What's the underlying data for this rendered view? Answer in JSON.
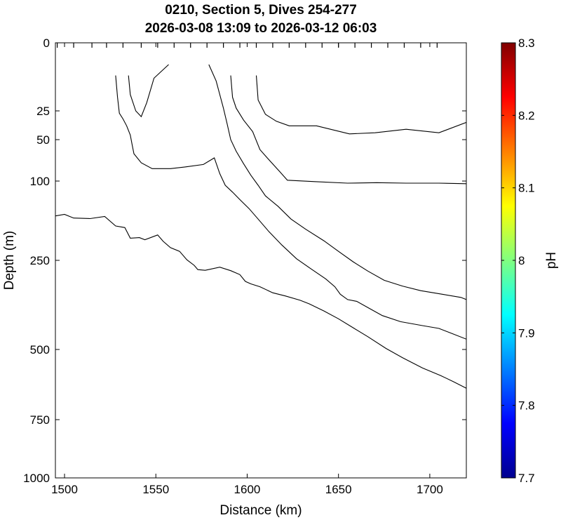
{
  "chart_data": {
    "type": "contour",
    "title": "0210, Section 5, Dives 254-277",
    "subtitle": "2026-03-08 13:09 to 2026-03-12 06:03",
    "xlabel": "Distance (km)",
    "ylabel": "Depth (m)",
    "xlim": [
      1495,
      1720
    ],
    "x_ticks": [
      1500,
      1550,
      1600,
      1650,
      1700
    ],
    "y_ticks": [
      0,
      25,
      50,
      100,
      250,
      500,
      750,
      1000
    ],
    "y_tick_labels": [
      "0",
      "25",
      "50",
      "100",
      "250",
      "500",
      "750",
      "1000"
    ],
    "dive_marks_x": [
      1496,
      1505,
      1515,
      1523,
      1532,
      1542,
      1551,
      1560,
      1569,
      1578,
      1587,
      1596,
      1605,
      1614,
      1623,
      1632,
      1641,
      1650,
      1659,
      1668,
      1677,
      1686,
      1695,
      1704
    ],
    "colorbar": {
      "label": "pH",
      "range": [
        7.7,
        8.3
      ],
      "ticks": [
        "8.3",
        "8.2",
        "8.1",
        "8",
        "7.9",
        "7.8",
        "7.7"
      ],
      "tick_values": [
        8.3,
        8.2,
        8.1,
        8.0,
        7.9,
        7.8,
        7.7
      ],
      "colormap": [
        "#00008f",
        "#0000ff",
        "#0080ff",
        "#00ffff",
        "#80ff80",
        "#ffff00",
        "#ff8000",
        "#ff0000",
        "#800000"
      ]
    },
    "contours": [
      [
        [
          1528,
          12
        ],
        [
          1529,
          20
        ],
        [
          1530,
          27
        ],
        [
          1532,
          32
        ],
        [
          1534,
          38
        ],
        [
          1536,
          46
        ],
        [
          1537,
          56
        ],
        [
          1538,
          67
        ],
        [
          1542,
          78
        ],
        [
          1548,
          85
        ],
        [
          1558,
          85
        ],
        [
          1566,
          83
        ],
        [
          1576,
          80
        ],
        [
          1582,
          72
        ],
        [
          1585,
          91
        ],
        [
          1588,
          108
        ],
        [
          1592,
          121
        ],
        [
          1596,
          135
        ],
        [
          1601,
          152
        ],
        [
          1606,
          172
        ],
        [
          1612,
          196
        ],
        [
          1619,
          221
        ],
        [
          1627,
          247
        ],
        [
          1635,
          274
        ],
        [
          1643,
          302
        ],
        [
          1648,
          324
        ],
        [
          1651,
          345
        ],
        [
          1655,
          360
        ],
        [
          1660,
          365
        ],
        [
          1667,
          385
        ],
        [
          1674,
          405
        ],
        [
          1684,
          422
        ],
        [
          1696,
          433
        ],
        [
          1705,
          441
        ],
        [
          1712,
          455
        ],
        [
          1720,
          471
        ]
      ],
      [
        [
          1535,
          12
        ],
        [
          1536,
          19
        ],
        [
          1539,
          25
        ],
        [
          1542,
          30
        ],
        [
          1545,
          22
        ],
        [
          1549,
          13
        ],
        [
          1557,
          8
        ]
      ],
      [
        [
          1579,
          8
        ],
        [
          1583,
          14
        ],
        [
          1587,
          24
        ],
        [
          1589,
          36
        ],
        [
          1591,
          50
        ],
        [
          1594,
          64
        ],
        [
          1598,
          79
        ],
        [
          1602,
          93
        ],
        [
          1606,
          108
        ],
        [
          1610,
          128
        ],
        [
          1617,
          148
        ],
        [
          1624,
          172
        ],
        [
          1632,
          191
        ],
        [
          1642,
          213
        ],
        [
          1650,
          233
        ],
        [
          1658,
          254
        ],
        [
          1666,
          280
        ],
        [
          1675,
          306
        ],
        [
          1685,
          322
        ],
        [
          1695,
          335
        ],
        [
          1708,
          346
        ],
        [
          1717,
          354
        ],
        [
          1720,
          360
        ]
      ],
      [
        [
          1591,
          12
        ],
        [
          1592,
          20
        ],
        [
          1594,
          24
        ],
        [
          1598,
          33
        ],
        [
          1603,
          43
        ],
        [
          1607,
          62
        ],
        [
          1611,
          72
        ],
        [
          1618,
          89
        ],
        [
          1622,
          99
        ],
        [
          1637,
          101
        ],
        [
          1655,
          104
        ],
        [
          1671,
          103
        ],
        [
          1687,
          104
        ],
        [
          1705,
          104
        ],
        [
          1720,
          105
        ]
      ],
      [
        [
          1605,
          12
        ],
        [
          1606,
          21
        ],
        [
          1610,
          28
        ],
        [
          1616,
          34
        ],
        [
          1623,
          38
        ],
        [
          1638,
          38
        ],
        [
          1656,
          45
        ],
        [
          1670,
          44
        ],
        [
          1687,
          41
        ],
        [
          1705,
          44
        ],
        [
          1720,
          35
        ]
      ],
      [
        [
          1495,
          166
        ],
        [
          1500,
          163
        ],
        [
          1505,
          170
        ],
        [
          1514,
          171
        ],
        [
          1522,
          167
        ],
        [
          1528,
          185
        ],
        [
          1533,
          188
        ],
        [
          1536,
          208
        ],
        [
          1541,
          207
        ],
        [
          1544,
          211
        ],
        [
          1551,
          202
        ],
        [
          1554,
          214
        ],
        [
          1558,
          226
        ],
        [
          1563,
          233
        ],
        [
          1567,
          249
        ],
        [
          1571,
          264
        ],
        [
          1573,
          276
        ],
        [
          1577,
          278
        ],
        [
          1585,
          269
        ],
        [
          1591,
          279
        ],
        [
          1596,
          290
        ],
        [
          1599,
          309
        ],
        [
          1602,
          316
        ],
        [
          1607,
          324
        ],
        [
          1614,
          341
        ],
        [
          1621,
          350
        ],
        [
          1629,
          362
        ],
        [
          1634,
          372
        ],
        [
          1642,
          392
        ],
        [
          1650,
          414
        ],
        [
          1658,
          439
        ],
        [
          1666,
          464
        ],
        [
          1676,
          497
        ],
        [
          1685,
          529
        ],
        [
          1696,
          566
        ],
        [
          1706,
          593
        ],
        [
          1713,
          615
        ],
        [
          1720,
          638
        ]
      ]
    ]
  }
}
